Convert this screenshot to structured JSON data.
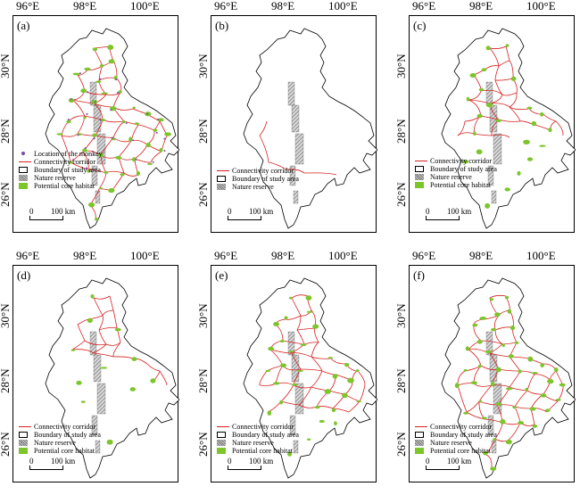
{
  "axes": {
    "lon_labels": [
      "96°E",
      "98°E",
      "100°E"
    ],
    "lat_labels": [
      "30°N",
      "28°N",
      "26°N"
    ]
  },
  "legend_labels": {
    "location": "Location of the monkey",
    "corridor": "Connectivity corridor",
    "boundary": "Boundary of study area",
    "nature_reserve": "Nature reserve",
    "core_habitat": "Potential core habitat"
  },
  "scale_labels": {
    "zero": "0",
    "distance": "100 km"
  },
  "colors": {
    "corridor": "#d62020",
    "core_habitat": "#7cc52a",
    "monkey": "#7a4aa8",
    "boundary": "#000000"
  },
  "panels": [
    {
      "id": "a",
      "label": "(a)",
      "legend": [
        "location",
        "corridor",
        "boundary",
        "nature_reserve",
        "core_habitat"
      ],
      "corridor_density": 1.0,
      "habitat_density": 1.0
    },
    {
      "id": "b",
      "label": "(b)",
      "legend": [
        "corridor",
        "boundary",
        "nature_reserve"
      ],
      "corridor_density": 0.05,
      "habitat_density": 0.0
    },
    {
      "id": "c",
      "label": "(c)",
      "legend": [
        "corridor",
        "boundary",
        "nature_reserve",
        "core_habitat"
      ],
      "corridor_density": 0.55,
      "habitat_density": 0.5
    },
    {
      "id": "d",
      "label": "(d)",
      "legend": [
        "corridor",
        "boundary",
        "nature_reserve",
        "core_habitat"
      ],
      "corridor_density": 0.35,
      "habitat_density": 0.25
    },
    {
      "id": "e",
      "label": "(e)",
      "legend": [
        "corridor",
        "boundary",
        "nature_reserve",
        "core_habitat"
      ],
      "corridor_density": 0.8,
      "habitat_density": 0.7
    },
    {
      "id": "f",
      "label": "(f)",
      "legend": [
        "corridor",
        "boundary",
        "nature_reserve",
        "core_habitat"
      ],
      "corridor_density": 1.0,
      "habitat_density": 1.0
    }
  ]
}
